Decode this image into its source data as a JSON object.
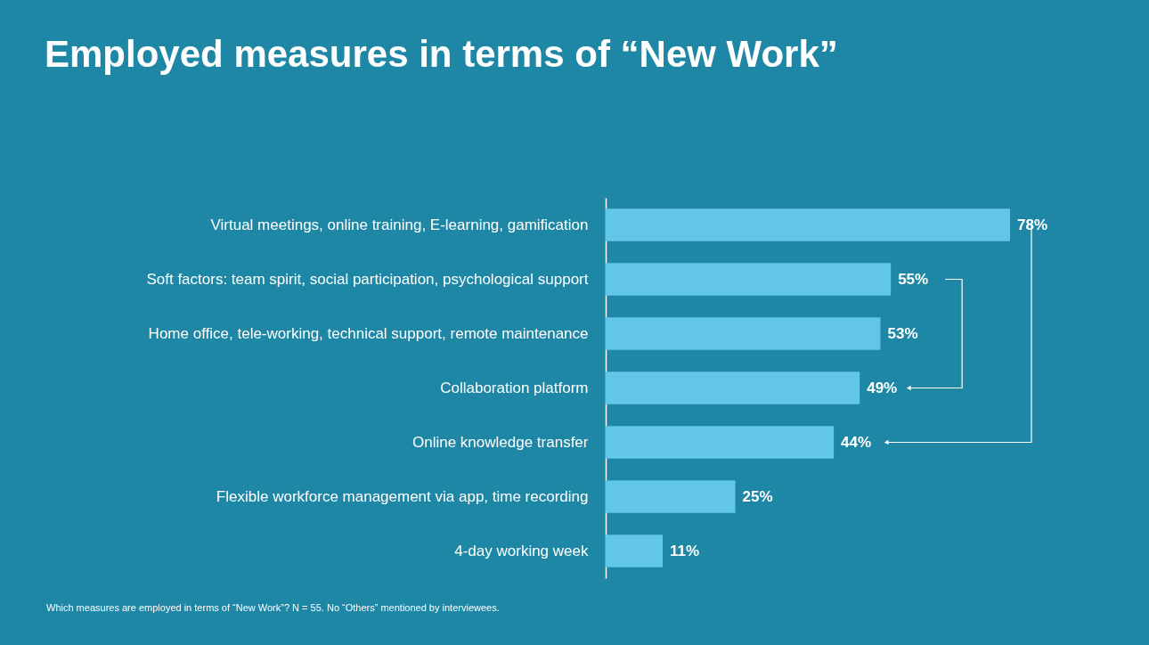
{
  "chart_data": {
    "type": "bar",
    "orientation": "horizontal",
    "title": "Employed measures in terms of “New Work”",
    "categories": [
      "Virtual meetings, online training, E-learning, gamification",
      "Soft factors: team spirit, social participation, psychological support",
      "Home office, tele-working, technical support, remote maintenance",
      "Collaboration platform",
      "Online knowledge transfer",
      "Flexible workforce management via app, time recording",
      "4-day working week"
    ],
    "values": [
      78,
      55,
      53,
      49,
      44,
      25,
      11
    ],
    "value_labels": [
      "78%",
      "55%",
      "53%",
      "49%",
      "44%",
      "25%",
      "11%"
    ],
    "color": "#62c6e6",
    "annotations": [
      "Which measures are employed in terms of “New Work”?  N = 55.  No “Others” mentioned by interviewees."
    ]
  }
}
